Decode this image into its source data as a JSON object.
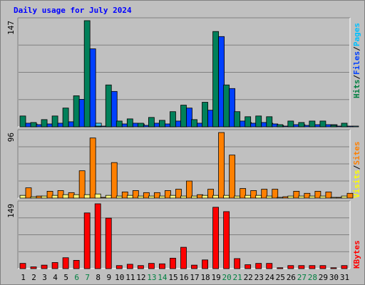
{
  "window": {
    "title": "Daily usage for July 2024"
  },
  "legend": {
    "top": [
      {
        "text": "Hits",
        "color": "#008040"
      },
      {
        "text": "/",
        "color": "#000000"
      },
      {
        "text": "Files",
        "color": "#0040ff"
      },
      {
        "text": "/",
        "color": "#000000"
      },
      {
        "text": "Pages",
        "color": "#00c0ff"
      }
    ],
    "middle": [
      {
        "text": "Visits",
        "color": "#ffff00"
      },
      {
        "text": "/",
        "color": "#000000"
      },
      {
        "text": "Sites",
        "color": "#ff8000"
      }
    ],
    "bottom": [
      {
        "text": "KBytes",
        "color": "#ff0000"
      }
    ]
  },
  "chart_data": [
    {
      "type": "bar",
      "title": "Daily usage for July 2024",
      "ymax_label": "147",
      "ylim": [
        0,
        147
      ],
      "categories": [
        "1",
        "2",
        "3",
        "4",
        "5",
        "6",
        "7",
        "8",
        "9",
        "10",
        "11",
        "12",
        "13",
        "14",
        "15",
        "16",
        "17",
        "18",
        "19",
        "20",
        "21",
        "22",
        "23",
        "24",
        "25",
        "26",
        "27",
        "28",
        "29",
        "30",
        "31"
      ],
      "weekend_days": [
        "6",
        "7",
        "13",
        "14",
        "20",
        "21",
        "27",
        "28"
      ],
      "series": [
        {
          "name": "Hits",
          "color": "#00805a",
          "values": [
            15,
            6,
            10,
            15,
            26,
            43,
            147,
            0,
            58,
            8,
            11,
            5,
            13,
            9,
            21,
            30,
            10,
            34,
            132,
            58,
            21,
            14,
            15,
            14,
            3,
            8,
            6,
            8,
            8,
            2,
            5
          ]
        },
        {
          "name": "Files",
          "color": "#0040ff",
          "values": [
            5,
            3,
            4,
            5,
            7,
            38,
            108,
            0,
            49,
            4,
            5,
            2,
            5,
            4,
            8,
            26,
            5,
            23,
            125,
            53,
            8,
            5,
            6,
            4,
            1,
            3,
            2,
            3,
            3,
            1,
            1
          ]
        },
        {
          "name": "Pages",
          "color": "#40c8f0",
          "values": [
            4,
            3,
            2,
            4,
            3,
            9,
            5,
            0,
            4,
            3,
            4,
            2,
            4,
            3,
            6,
            3,
            4,
            4,
            4,
            5,
            6,
            5,
            5,
            2,
            1,
            3,
            3,
            3,
            3,
            1,
            1
          ]
        }
      ]
    },
    {
      "type": "bar",
      "ymax_label": "96",
      "ylim": [
        0,
        96
      ],
      "categories": [
        "1",
        "2",
        "3",
        "4",
        "5",
        "6",
        "7",
        "8",
        "9",
        "10",
        "11",
        "12",
        "13",
        "14",
        "15",
        "16",
        "17",
        "18",
        "19",
        "20",
        "21",
        "22",
        "23",
        "24",
        "25",
        "26",
        "27",
        "28",
        "29",
        "30",
        "31"
      ],
      "series": [
        {
          "name": "Visits",
          "color": "#ffff80",
          "values": [
            4,
            2,
            3,
            4,
            5,
            5,
            5,
            6,
            4,
            3,
            4,
            3,
            3,
            3,
            4,
            3,
            3,
            4,
            4,
            4,
            3,
            4,
            4,
            3,
            1,
            3,
            3,
            3,
            3,
            1,
            3
          ]
        },
        {
          "name": "Sites",
          "color": "#ff8000",
          "values": [
            15,
            3,
            10,
            11,
            8,
            40,
            88,
            0,
            52,
            9,
            11,
            8,
            8,
            11,
            13,
            25,
            5,
            13,
            96,
            63,
            14,
            11,
            13,
            13,
            2,
            10,
            7,
            10,
            9,
            0,
            7
          ]
        }
      ]
    },
    {
      "type": "bar",
      "ymax_label": "149",
      "ylim": [
        0,
        149
      ],
      "categories": [
        "1",
        "2",
        "3",
        "4",
        "5",
        "6",
        "7",
        "8",
        "9",
        "10",
        "11",
        "12",
        "13",
        "14",
        "15",
        "16",
        "17",
        "18",
        "19",
        "20",
        "21",
        "22",
        "23",
        "24",
        "25",
        "26",
        "27",
        "28",
        "29",
        "30",
        "31"
      ],
      "series": [
        {
          "name": "KBytes",
          "color": "#ff0000",
          "values": [
            12,
            4,
            8,
            14,
            25,
            19,
            128,
            149,
            116,
            7,
            10,
            7,
            12,
            11,
            24,
            49,
            8,
            20,
            141,
            131,
            23,
            9,
            12,
            12,
            2,
            7,
            7,
            7,
            7,
            2,
            7
          ]
        }
      ]
    }
  ]
}
